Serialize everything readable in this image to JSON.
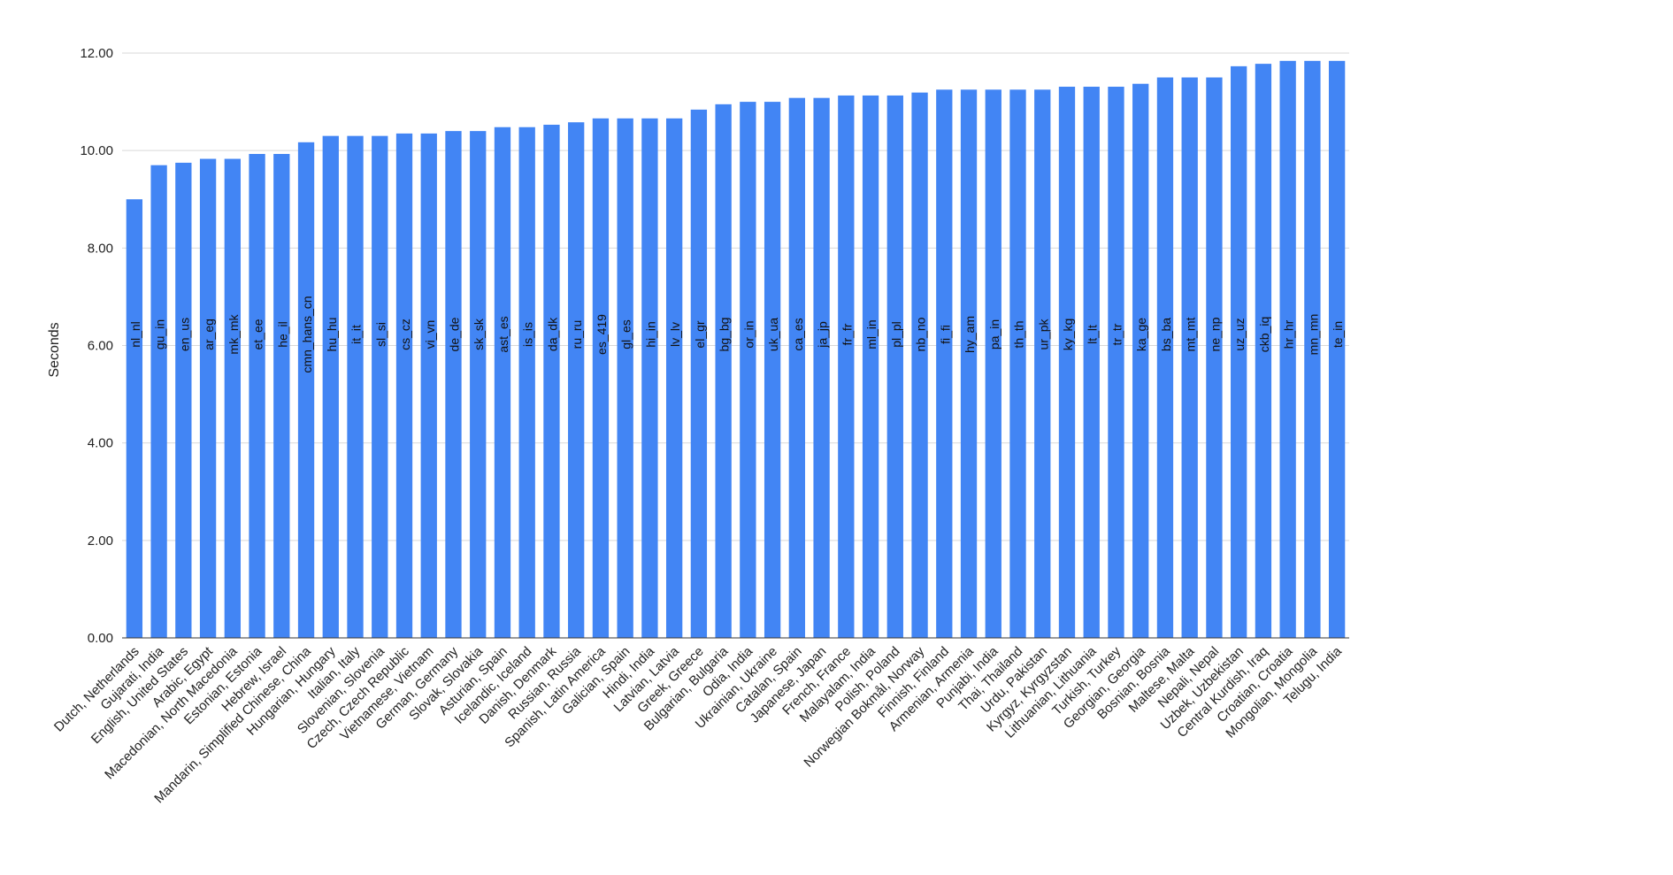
{
  "chart_data": {
    "type": "bar",
    "ylabel": "Seconds",
    "xlabel": "",
    "ylim": [
      0,
      12
    ],
    "yticks": [
      "0.00",
      "2.00",
      "4.00",
      "6.00",
      "8.00",
      "10.00",
      "12.00"
    ],
    "bar_color": "#4285f4",
    "grid": true,
    "categories": [
      "Dutch, Netherlands",
      "Gujarati, India",
      "English, United States",
      "Arabic, Egypt",
      "Macedonian, North Macedonia",
      "Estonian, Estonia",
      "Hebrew, Israel",
      "Mandarin, Simplified Chinese, China",
      "Hungarian, Hungary",
      "Italian, Italy",
      "Slovenian, Slovenia",
      "Czech, Czech Republic",
      "Vietnamese, Vietnam",
      "German, Germany",
      "Slovak, Slovakia",
      "Asturian, Spain",
      "Icelandic, Iceland",
      "Danish, Denmark",
      "Russian, Russia",
      "Spanish, Latin America",
      "Galician, Spain",
      "Hindi, India",
      "Latvian, Latvia",
      "Greek, Greece",
      "Bulgarian, Bulgaria",
      "Odia, India",
      "Ukrainian, Ukraine",
      "Catalan, Spain",
      "Japanese, Japan",
      "French, France",
      "Malayalam, India",
      "Polish, Poland",
      "Norwegian Bokmål, Norway",
      "Finnish, Finland",
      "Armenian, Armenia",
      "Punjabi, India",
      "Thai, Thailand",
      "Urdu, Pakistan",
      "Kyrgyz, Kyrgyzstan",
      "Lithuanian, Lithuania",
      "Turkish, Turkey",
      "Georgian, Georgia",
      "Bosnian, Bosnia",
      "Maltese, Malta",
      "Nepali, Nepal",
      "Uzbek, Uzbekistan",
      "Central Kurdish, Iraq",
      "Croatian, Croatia",
      "Mongolian, Mongolia",
      "Telugu, India"
    ],
    "bar_labels": [
      "nl_nl",
      "gu_in",
      "en_us",
      "ar_eg",
      "mk_mk",
      "et_ee",
      "he_il",
      "cmn_hans_cn",
      "hu_hu",
      "it_it",
      "sl_si",
      "cs_cz",
      "vi_vn",
      "de_de",
      "sk_sk",
      "ast_es",
      "is_is",
      "da_dk",
      "ru_ru",
      "es_419",
      "gl_es",
      "hi_in",
      "lv_lv",
      "el_gr",
      "bg_bg",
      "or_in",
      "uk_ua",
      "ca_es",
      "ja_jp",
      "fr_fr",
      "ml_in",
      "pl_pl",
      "nb_no",
      "fi_fi",
      "hy_am",
      "pa_in",
      "th_th",
      "ur_pk",
      "ky_kg",
      "lt_lt",
      "tr_tr",
      "ka_ge",
      "bs_ba",
      "mt_mt",
      "ne_np",
      "uz_uz",
      "ckb_iq",
      "hr_hr",
      "mn_mn",
      "te_in"
    ],
    "values": [
      9.0,
      9.7,
      9.75,
      9.83,
      9.83,
      9.93,
      9.93,
      10.17,
      10.3,
      10.3,
      10.3,
      10.35,
      10.35,
      10.4,
      10.4,
      10.48,
      10.48,
      10.53,
      10.58,
      10.66,
      10.66,
      10.66,
      10.66,
      10.84,
      10.95,
      11.0,
      11.0,
      11.08,
      11.08,
      11.13,
      11.13,
      11.13,
      11.19,
      11.25,
      11.25,
      11.25,
      11.25,
      11.25,
      11.31,
      11.31,
      11.31,
      11.37,
      11.5,
      11.5,
      11.5,
      11.73,
      11.78,
      11.84,
      11.84,
      11.84
    ]
  }
}
